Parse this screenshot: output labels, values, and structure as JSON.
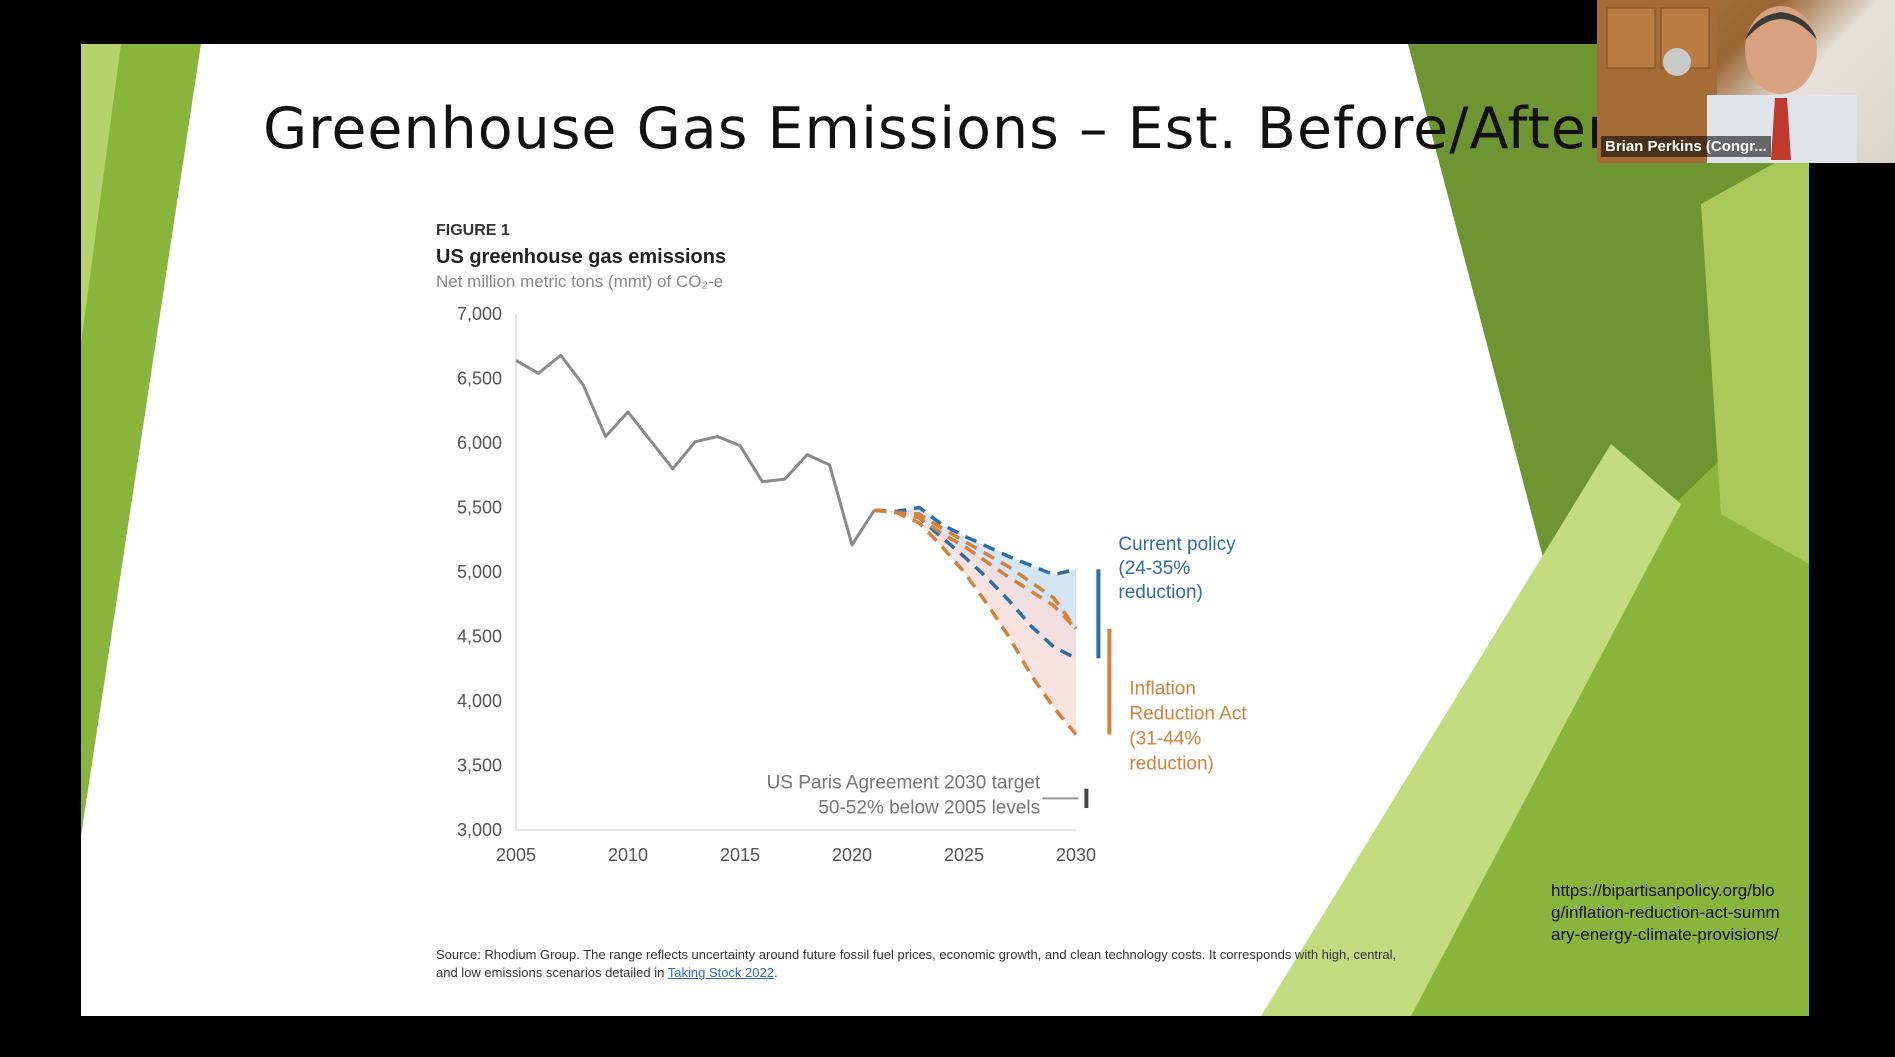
{
  "slide": {
    "title": "Greenhouse Gas Emissions – Est. Before/After"
  },
  "figure": {
    "label": "FIGURE 1",
    "title": "US greenhouse gas emissions",
    "subtitle": "Net million metric tons (mmt) of CO₂-e",
    "source_text": "Source: Rhodium Group. The range reflects uncertainty around future fossil fuel prices, economic growth, and clean technology costs. It corresponds with high, central, and low emissions scenarios detailed in ",
    "source_link": "Taking Stock 2022",
    "source_end": "."
  },
  "url_note": "https://bipartisanpolicy.org/blog/inflation-reduction-act-summary-energy-climate-provisions/",
  "webcam": {
    "name": "Brian Perkins (Congr..."
  },
  "colors": {
    "historical": "#8a8a8a",
    "current_policy": "#2e6ea6",
    "ira": "#d4813a",
    "current_fill": "#cfe3f4",
    "ira_fill": "#f8dcd8",
    "slide_green": "#8ab53c"
  },
  "chart_data": {
    "type": "line",
    "ylim": [
      3000,
      7000
    ],
    "xlim": [
      2005,
      2030
    ],
    "x_ticks": [
      "2005",
      "2010",
      "2015",
      "2020",
      "2025",
      "2030"
    ],
    "y_ticks": [
      "7,000",
      "6,500",
      "6,000",
      "5,500",
      "5,000",
      "4,500",
      "4,000",
      "3,500",
      "3,000"
    ],
    "series": [
      {
        "x": [
          2005,
          2006,
          2007,
          2008,
          2009,
          2010,
          2011,
          2012,
          2013,
          2014,
          2015,
          2016,
          2017,
          2018,
          2019,
          2020,
          2021
        ],
        "values": [
          6640,
          6540,
          6680,
          6450,
          6050,
          6240,
          6020,
          5800,
          6010,
          6050,
          5980,
          5700,
          5720,
          5910,
          5830,
          5210,
          5480
        ]
      },
      {
        "x": [
          2021,
          2022,
          2023,
          2024,
          2025,
          2026,
          2027,
          2028,
          2029,
          2030
        ],
        "values": [
          5480,
          5470,
          5500,
          5370,
          5280,
          5200,
          5120,
          5050,
          4980,
          5020
        ]
      },
      {
        "x": [
          2021,
          2022,
          2023,
          2024,
          2025,
          2026,
          2027,
          2028,
          2029,
          2030
        ],
        "values": [
          5480,
          5460,
          5420,
          5300,
          5200,
          5080,
          4960,
          4850,
          4740,
          4560
        ]
      },
      {
        "x": [
          2021,
          2022,
          2023,
          2024,
          2025,
          2026,
          2027,
          2028,
          2029,
          2030
        ],
        "values": [
          5480,
          5460,
          5450,
          5340,
          5240,
          5140,
          5040,
          4920,
          4800,
          4560
        ]
      },
      {
        "x": [
          2021,
          2022,
          2023,
          2024,
          2025,
          2026,
          2027,
          2028,
          2029,
          2030
        ],
        "values": [
          5480,
          5460,
          5420,
          5270,
          5120,
          4960,
          4780,
          4580,
          4420,
          4330
        ]
      },
      {
        "x": [
          2021,
          2022,
          2023,
          2024,
          2025,
          2026,
          2027,
          2028,
          2029,
          2030
        ],
        "values": [
          5480,
          5460,
          5380,
          5200,
          5000,
          4760,
          4500,
          4200,
          3950,
          3740
        ]
      }
    ],
    "ranges": [
      {
        "name": "Current policy",
        "low": 4330,
        "high": 5020
      },
      {
        "name": "Inflation Reduction Act",
        "low": 3740,
        "high": 4560
      },
      {
        "name": "US Paris Agreement 2030 target",
        "low": 3170,
        "high": 3320
      }
    ],
    "annotations": {
      "current_policy": [
        "Current policy",
        "(24-35%",
        "reduction)"
      ],
      "ira": [
        "Inflation",
        "Reduction Act",
        "(31-44%",
        "reduction)"
      ],
      "paris": [
        "US Paris Agreement 2030 target",
        "50-52% below 2005 levels"
      ]
    }
  }
}
